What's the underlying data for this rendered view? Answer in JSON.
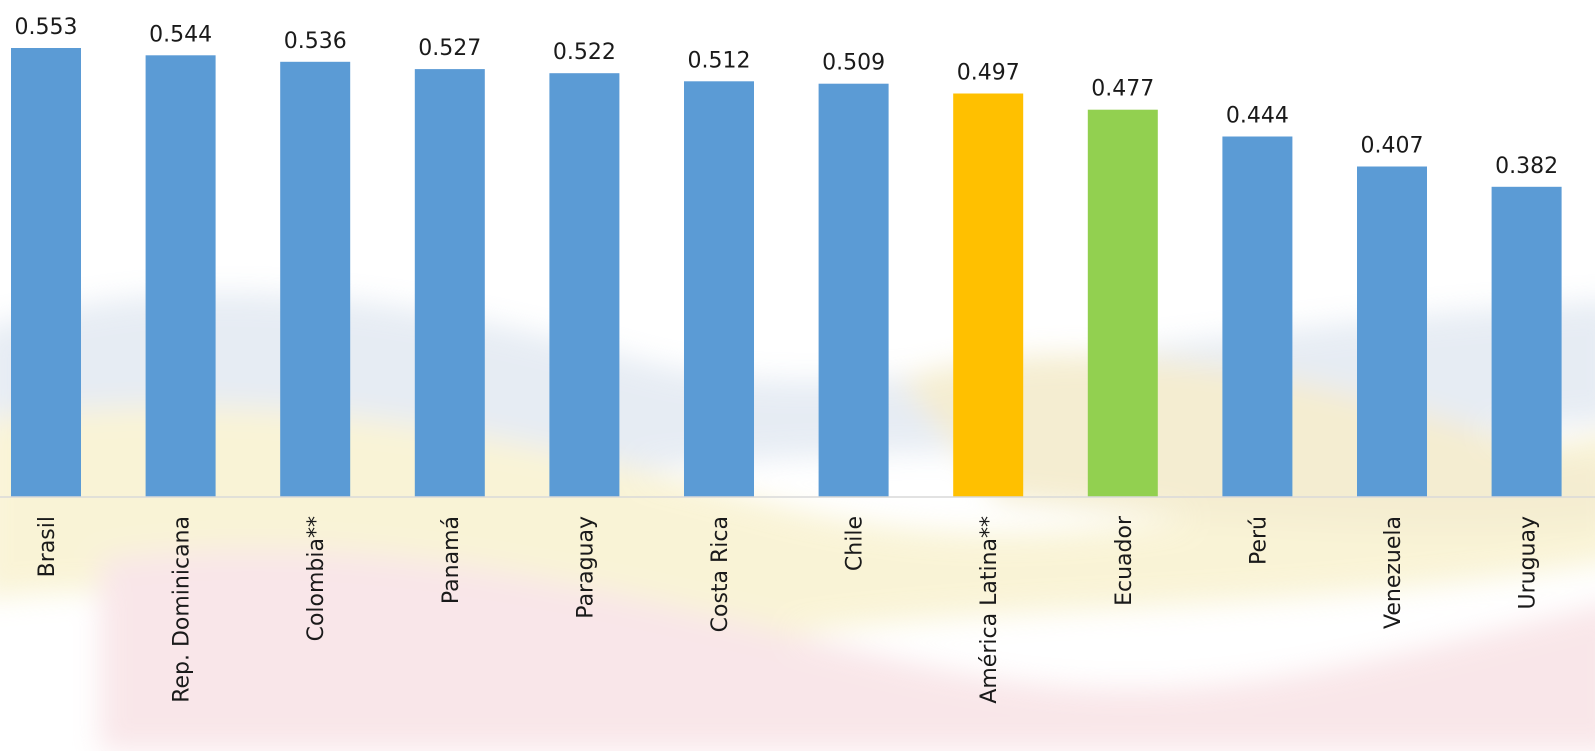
{
  "chart_data": {
    "type": "bar",
    "title": "",
    "xlabel": "",
    "ylabel": "",
    "ylim": [
      0,
      0.553
    ],
    "grid": false,
    "legend": "none",
    "categories": [
      "Brasil",
      "Rep. Dominicana",
      "Colombia**",
      "Panamá",
      "Paraguay",
      "Costa Rica",
      "Chile",
      "América Latina**",
      "Ecuador",
      "Perú",
      "Venezuela",
      "Uruguay"
    ],
    "values": [
      0.553,
      0.544,
      0.536,
      0.527,
      0.522,
      0.512,
      0.509,
      0.497,
      0.477,
      0.444,
      0.407,
      0.382
    ],
    "data_labels": [
      "0.553",
      "0.544",
      "0.536",
      "0.527",
      "0.522",
      "0.512",
      "0.509",
      "0.497",
      "0.477",
      "0.444",
      "0.407",
      "0.382"
    ],
    "colors": {
      "default": "#5b9bd5",
      "highlight_region": "#ffc000",
      "highlight_country": "#92d050",
      "axis": "#d9d9d9"
    },
    "bar_colors": [
      "#5b9bd5",
      "#5b9bd5",
      "#5b9bd5",
      "#5b9bd5",
      "#5b9bd5",
      "#5b9bd5",
      "#5b9bd5",
      "#ffc000",
      "#92d050",
      "#5b9bd5",
      "#5b9bd5",
      "#5b9bd5"
    ]
  }
}
